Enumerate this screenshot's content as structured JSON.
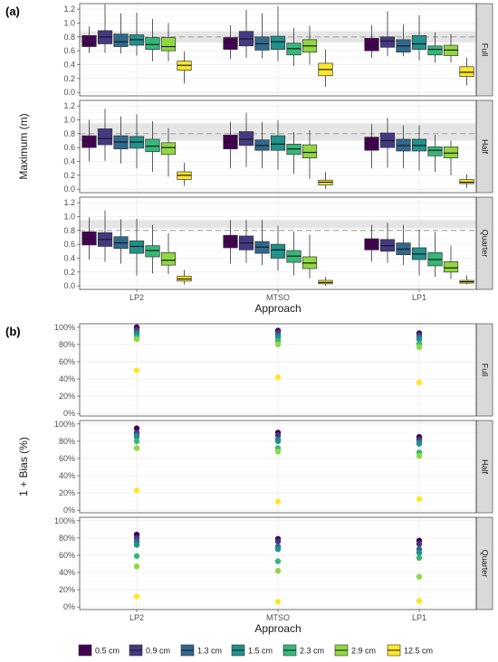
{
  "chart_data": [
    {
      "panel_label": "(a)",
      "type": "boxplot",
      "xlabel": "Approach",
      "ylabel": "Maximum (m)",
      "categories": [
        "LP2",
        "MTSO",
        "LP1"
      ],
      "ylim": [
        -0.05,
        1.28
      ],
      "yticks": [
        0.0,
        0.2,
        0.4,
        0.6,
        0.8,
        1.0,
        1.2
      ],
      "ytick_labels": [
        "0.0",
        "0.2",
        "0.4",
        "0.6",
        "0.8",
        "1.0",
        "1.2"
      ],
      "reference_line": 0.8,
      "facets": [
        {
          "name": "Full",
          "band": [
            0.72,
            0.88
          ],
          "groups": [
            [
              [
                0.57,
                0.66,
                0.72,
                0.82,
                0.95
              ],
              [
                0.57,
                0.7,
                0.8,
                0.89,
                1.27
              ],
              [
                0.56,
                0.66,
                0.73,
                0.84,
                1.14
              ],
              [
                0.53,
                0.68,
                0.76,
                0.83,
                1.15
              ],
              [
                0.45,
                0.62,
                0.69,
                0.79,
                1.06
              ],
              [
                0.45,
                0.6,
                0.66,
                0.79,
                1.0
              ],
              [
                0.13,
                0.32,
                0.39,
                0.45,
                0.59
              ]
            ],
            [
              [
                0.48,
                0.62,
                0.71,
                0.79,
                0.97
              ],
              [
                0.5,
                0.67,
                0.77,
                0.88,
                1.19
              ],
              [
                0.49,
                0.61,
                0.7,
                0.8,
                1.14
              ],
              [
                0.45,
                0.62,
                0.73,
                0.81,
                1.24
              ],
              [
                0.38,
                0.54,
                0.63,
                0.71,
                0.93
              ],
              [
                0.4,
                0.58,
                0.67,
                0.76,
                0.96
              ],
              [
                0.08,
                0.24,
                0.33,
                0.42,
                0.62
              ]
            ],
            [
              [
                0.5,
                0.6,
                0.68,
                0.78,
                0.97
              ],
              [
                0.52,
                0.65,
                0.74,
                0.8,
                1.17
              ],
              [
                0.52,
                0.58,
                0.67,
                0.76,
                0.98
              ],
              [
                0.46,
                0.62,
                0.7,
                0.82,
                1.11
              ],
              [
                0.43,
                0.54,
                0.62,
                0.67,
                0.87
              ],
              [
                0.43,
                0.53,
                0.61,
                0.68,
                0.84
              ],
              [
                0.1,
                0.23,
                0.29,
                0.37,
                0.5
              ]
            ]
          ]
        },
        {
          "name": "Half",
          "band": [
            0.7,
            0.95
          ],
          "groups": [
            [
              [
                0.4,
                0.6,
                0.7,
                0.77,
                1.0
              ],
              [
                0.41,
                0.64,
                0.73,
                0.87,
                1.16
              ],
              [
                0.37,
                0.58,
                0.68,
                0.77,
                1.05
              ],
              [
                0.3,
                0.59,
                0.68,
                0.76,
                1.08
              ],
              [
                0.25,
                0.54,
                0.62,
                0.72,
                0.98
              ],
              [
                0.18,
                0.5,
                0.6,
                0.67,
                0.88
              ],
              [
                0.05,
                0.14,
                0.2,
                0.25,
                0.38
              ]
            ],
            [
              [
                0.3,
                0.58,
                0.68,
                0.78,
                0.97
              ],
              [
                0.32,
                0.63,
                0.72,
                0.83,
                1.1
              ],
              [
                0.3,
                0.56,
                0.63,
                0.71,
                0.97
              ],
              [
                0.28,
                0.56,
                0.65,
                0.77,
                0.99
              ],
              [
                0.22,
                0.5,
                0.58,
                0.65,
                0.82
              ],
              [
                0.15,
                0.45,
                0.53,
                0.64,
                0.85
              ],
              [
                0.0,
                0.06,
                0.1,
                0.13,
                0.25
              ]
            ],
            [
              [
                0.3,
                0.56,
                0.65,
                0.75,
                0.94
              ],
              [
                0.31,
                0.6,
                0.7,
                0.81,
                1.03
              ],
              [
                0.3,
                0.55,
                0.63,
                0.72,
                0.92
              ],
              [
                0.27,
                0.55,
                0.63,
                0.72,
                0.92
              ],
              [
                0.25,
                0.48,
                0.56,
                0.61,
                0.78
              ],
              [
                0.2,
                0.45,
                0.52,
                0.61,
                0.7
              ],
              [
                0.02,
                0.08,
                0.1,
                0.14,
                0.21
              ]
            ]
          ]
        },
        {
          "name": "Quarter",
          "band": [
            0.83,
            0.95
          ],
          "groups": [
            [
              [
                0.38,
                0.59,
                0.68,
                0.78,
                0.99
              ],
              [
                0.35,
                0.57,
                0.67,
                0.77,
                1.09
              ],
              [
                0.32,
                0.54,
                0.62,
                0.71,
                0.96
              ],
              [
                0.15,
                0.47,
                0.57,
                0.65,
                0.97
              ],
              [
                0.18,
                0.42,
                0.51,
                0.58,
                0.88
              ],
              [
                0.17,
                0.3,
                0.37,
                0.48,
                0.76
              ],
              [
                0.02,
                0.07,
                0.1,
                0.14,
                0.23
              ]
            ],
            [
              [
                0.32,
                0.55,
                0.64,
                0.73,
                0.95
              ],
              [
                0.33,
                0.52,
                0.62,
                0.72,
                0.95
              ],
              [
                0.3,
                0.47,
                0.56,
                0.64,
                0.95
              ],
              [
                0.22,
                0.4,
                0.52,
                0.6,
                0.87
              ],
              [
                0.15,
                0.34,
                0.43,
                0.51,
                0.78
              ],
              [
                0.11,
                0.25,
                0.33,
                0.42,
                0.74
              ],
              [
                0.0,
                0.03,
                0.05,
                0.08,
                0.13
              ]
            ],
            [
              [
                0.35,
                0.52,
                0.6,
                0.68,
                0.88
              ],
              [
                0.33,
                0.5,
                0.58,
                0.67,
                0.91
              ],
              [
                0.3,
                0.45,
                0.53,
                0.62,
                0.88
              ],
              [
                0.15,
                0.38,
                0.46,
                0.55,
                0.81
              ],
              [
                0.13,
                0.29,
                0.38,
                0.48,
                0.78
              ],
              [
                0.1,
                0.2,
                0.26,
                0.35,
                0.58
              ],
              [
                0.02,
                0.04,
                0.06,
                0.08,
                0.15
              ]
            ]
          ]
        }
      ]
    },
    {
      "panel_label": "(b)",
      "type": "scatter",
      "xlabel": "Approach",
      "ylabel": "1 + Bias (%)",
      "categories": [
        "LP2",
        "MTSO",
        "LP1"
      ],
      "ylim": [
        -3,
        104
      ],
      "yticks": [
        0,
        20,
        40,
        60,
        80,
        100
      ],
      "ytick_labels": [
        "0%",
        "20%",
        "40%",
        "60%",
        "80%",
        "100%"
      ],
      "facets": [
        {
          "name": "Full",
          "points": [
            [
              100,
              97,
              94,
              92,
              88,
              86,
              50
            ],
            [
              96,
              94,
              91,
              88,
              84,
              80,
              42
            ],
            [
              93,
              91,
              88,
              86,
              81,
              77,
              36
            ]
          ]
        },
        {
          "name": "Half",
          "points": [
            [
              95,
              90,
              87,
              85,
              80,
              72,
              23
            ],
            [
              90,
              87,
              82,
              80,
              72,
              68,
              10
            ],
            [
              85,
              82,
              79,
              77,
              67,
              63,
              13
            ]
          ]
        },
        {
          "name": "Quarter",
          "points": [
            [
              84,
              80,
              76,
              72,
              59,
              47,
              12
            ],
            [
              79,
              76,
              70,
              67,
              53,
              42,
              6
            ],
            [
              77,
              73,
              67,
              63,
              57,
              35,
              7
            ]
          ]
        }
      ]
    }
  ],
  "legend": {
    "items": [
      {
        "label": "0.5 cm",
        "color": "#440154"
      },
      {
        "label": "0.9 cm",
        "color": "#443983"
      },
      {
        "label": "1.3 cm",
        "color": "#31688e"
      },
      {
        "label": "1.5 cm",
        "color": "#21918c"
      },
      {
        "label": "2.3 cm",
        "color": "#35b779"
      },
      {
        "label": "2.9 cm",
        "color": "#90d743"
      },
      {
        "label": "12.5 cm",
        "color": "#fde725"
      }
    ]
  }
}
